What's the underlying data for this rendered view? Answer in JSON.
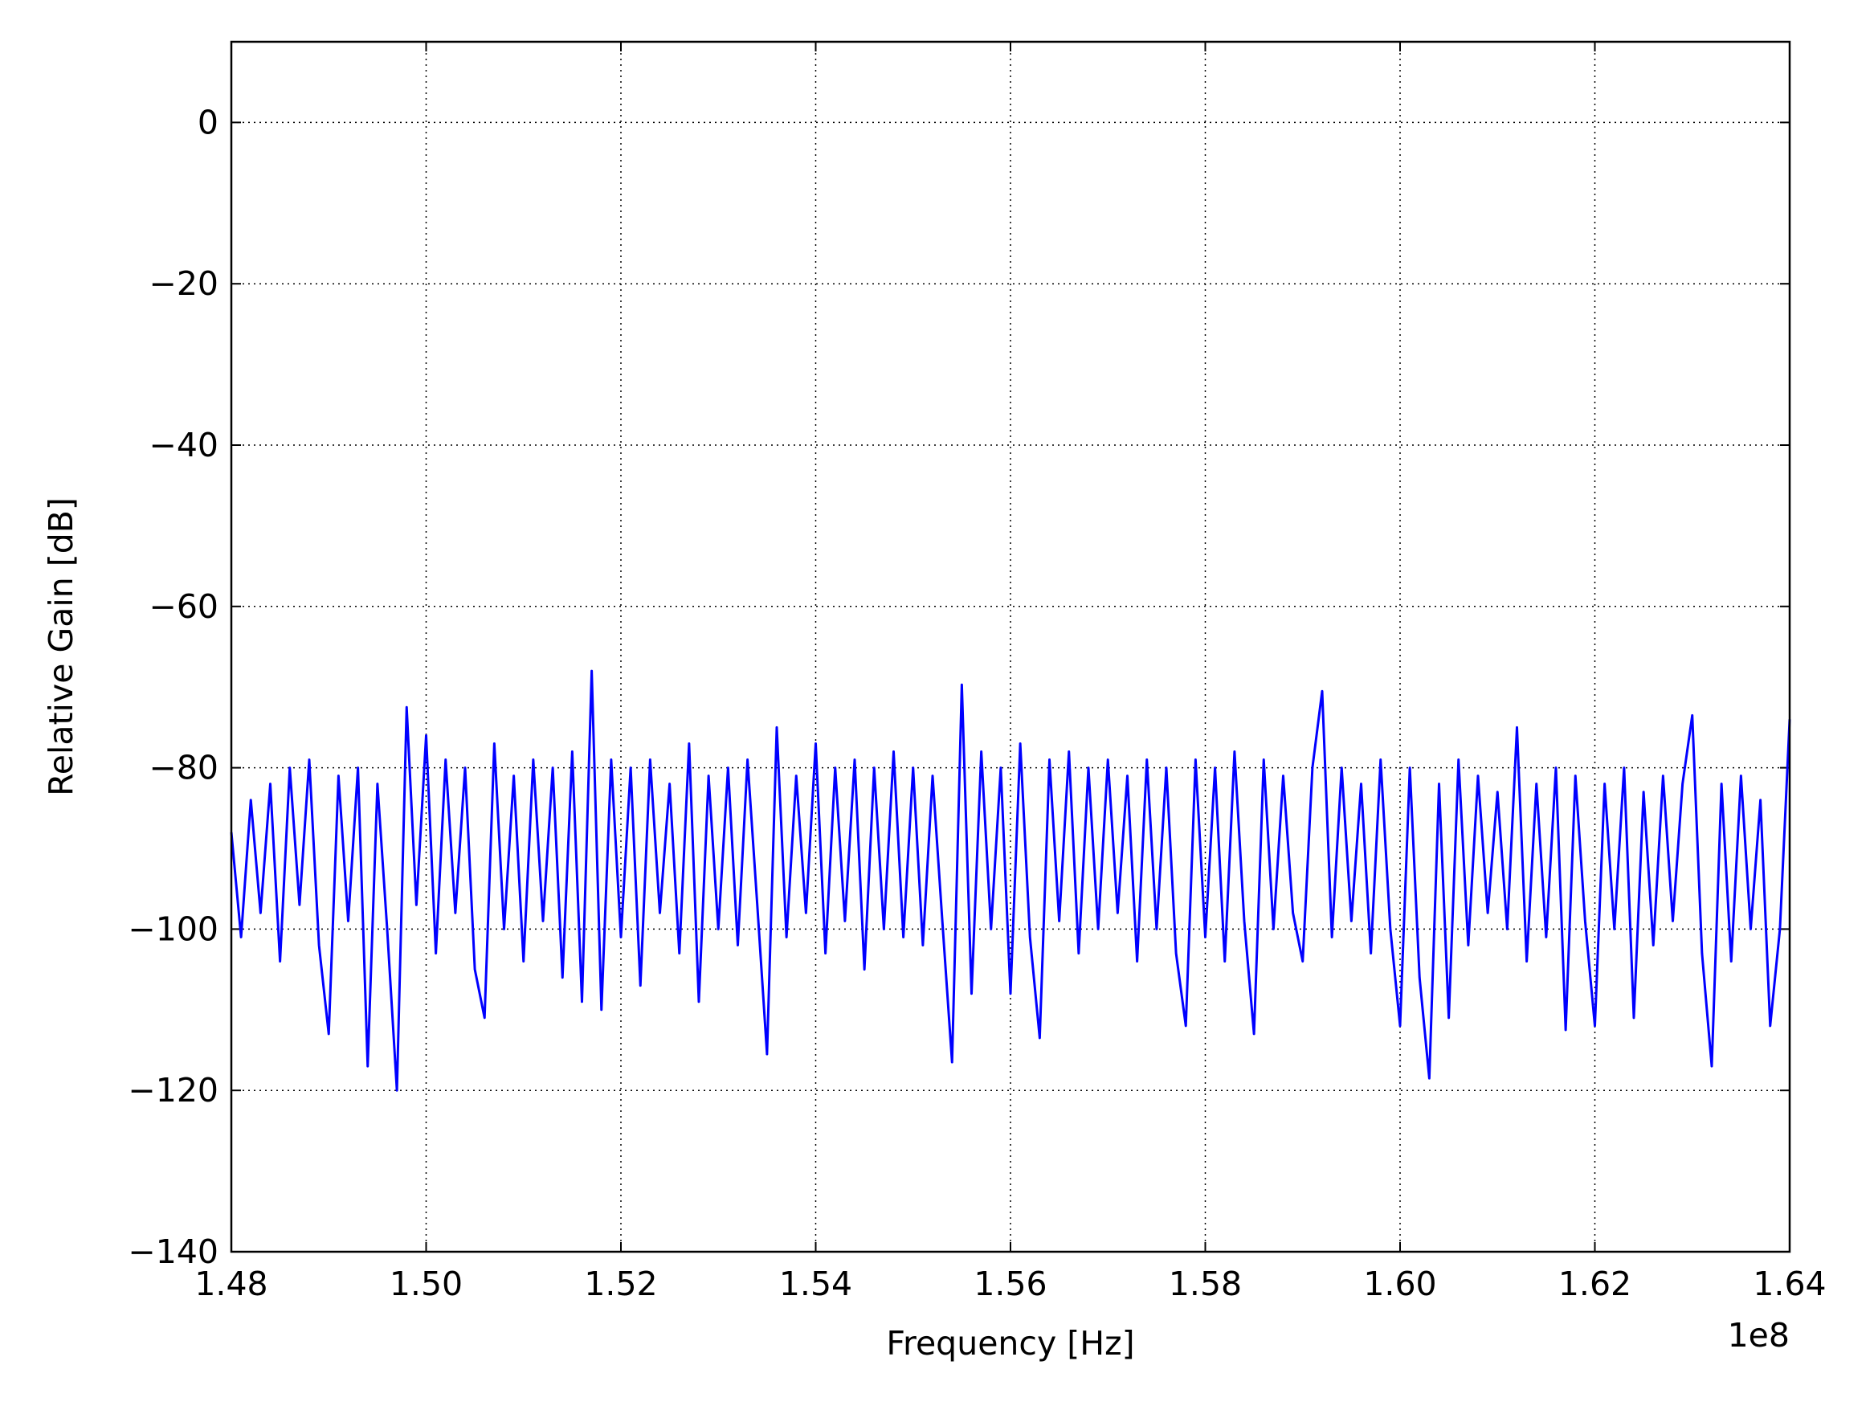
{
  "chart_data": {
    "type": "line",
    "xlabel": "Frequency [Hz]",
    "ylabel": "Relative Gain [dB]",
    "x_offset_label": "1e8",
    "xlim": [
      1.48,
      1.64
    ],
    "ylim": [
      -140,
      10
    ],
    "xticks": [
      1.48,
      {
        "value": 1.5,
        "label": "1.50"
      },
      1.52,
      1.54,
      1.56,
      1.58,
      {
        "value": 1.6,
        "label": "1.60"
      },
      1.62,
      1.64
    ],
    "yticks": [
      {
        "value": -140,
        "label": "−140"
      },
      {
        "value": -120,
        "label": "−120"
      },
      {
        "value": -100,
        "label": "−100"
      },
      {
        "value": -80,
        "label": "−80"
      },
      {
        "value": -60,
        "label": "−60"
      },
      {
        "value": -40,
        "label": "−40"
      },
      {
        "value": -20,
        "label": "−20"
      },
      0
    ],
    "grid": true,
    "x": [
      1.48,
      1.481,
      1.482,
      1.483,
      1.484,
      1.485,
      1.486,
      1.487,
      1.488,
      1.489,
      1.49,
      1.491,
      1.492,
      1.493,
      1.494,
      1.495,
      1.496,
      1.497,
      1.498,
      1.499,
      1.5,
      1.501,
      1.502,
      1.503,
      1.504,
      1.505,
      1.506,
      1.507,
      1.508,
      1.509,
      1.51,
      1.511,
      1.512,
      1.513,
      1.514,
      1.515,
      1.516,
      1.517,
      1.518,
      1.519,
      1.52,
      1.521,
      1.522,
      1.523,
      1.524,
      1.525,
      1.526,
      1.527,
      1.528,
      1.529,
      1.53,
      1.531,
      1.532,
      1.533,
      1.534,
      1.535,
      1.536,
      1.537,
      1.538,
      1.539,
      1.54,
      1.541,
      1.542,
      1.543,
      1.544,
      1.545,
      1.546,
      1.547,
      1.548,
      1.549,
      1.55,
      1.551,
      1.552,
      1.553,
      1.554,
      1.555,
      1.556,
      1.557,
      1.558,
      1.559,
      1.56,
      1.561,
      1.562,
      1.563,
      1.564,
      1.565,
      1.566,
      1.567,
      1.568,
      1.569,
      1.57,
      1.571,
      1.572,
      1.573,
      1.574,
      1.575,
      1.576,
      1.577,
      1.578,
      1.579,
      1.58,
      1.581,
      1.582,
      1.583,
      1.584,
      1.585,
      1.586,
      1.587,
      1.588,
      1.589,
      1.59,
      1.591,
      1.592,
      1.593,
      1.594,
      1.595,
      1.596,
      1.597,
      1.598,
      1.599,
      1.6,
      1.601,
      1.602,
      1.603,
      1.604,
      1.605,
      1.606,
      1.607,
      1.608,
      1.609,
      1.61,
      1.611,
      1.612,
      1.613,
      1.614,
      1.615,
      1.616,
      1.617,
      1.618,
      1.619,
      1.62,
      1.621,
      1.622,
      1.623,
      1.624,
      1.625,
      1.626,
      1.627,
      1.628,
      1.629,
      1.63,
      1.631,
      1.632,
      1.633,
      1.634,
      1.635,
      1.636,
      1.637,
      1.638,
      1.639,
      1.64
    ],
    "series": [
      {
        "color": "#0000ff",
        "values": [
          -88,
          -101,
          -84,
          -98,
          -82,
          -104,
          -80,
          -97,
          -79,
          -102,
          -113,
          -81,
          -99,
          -80,
          -117,
          -82,
          -100,
          -120,
          -72.5,
          -97,
          -76,
          -103,
          -79,
          -98,
          -80,
          -105,
          -111,
          -77,
          -100,
          -81,
          -104,
          -79,
          -99,
          -80,
          -106,
          -78,
          -109,
          -68,
          -110,
          -79,
          -101,
          -80,
          -107,
          -79,
          -98,
          -82,
          -103,
          -77,
          -109,
          -81,
          -100,
          -80,
          -102,
          -79,
          -97,
          -115.5,
          -75,
          -101,
          -81,
          -98,
          -77,
          -103,
          -80,
          -99,
          -79,
          -105,
          -80,
          -100,
          -78,
          -101,
          -80,
          -102,
          -81,
          -99,
          -116.5,
          -69.7,
          -108,
          -78,
          -100,
          -80,
          -108,
          -77,
          -101,
          -113.5,
          -79,
          -99,
          -78,
          -103,
          -80,
          -100,
          -79,
          -98,
          -81,
          -104,
          -79,
          -100,
          -80,
          -103,
          -112,
          -79,
          -101,
          -80,
          -104,
          -78,
          -99,
          -113,
          -79,
          -100,
          -81,
          -98,
          -104,
          -80,
          -70.5,
          -101,
          -80,
          -99,
          -82,
          -103,
          -79,
          -100,
          -112,
          -80,
          -106,
          -118.5,
          -82,
          -111,
          -79,
          -102,
          -81,
          -98,
          -83,
          -100,
          -75,
          -104,
          -82,
          -101,
          -80,
          -112.5,
          -81,
          -99,
          -112,
          -82,
          -100,
          -80,
          -111,
          -83,
          -102,
          -81,
          -99,
          -82,
          -73.5,
          -103,
          -117,
          -82,
          -104,
          -81,
          -100,
          -84,
          -112,
          -100,
          -74
        ]
      }
    ]
  }
}
